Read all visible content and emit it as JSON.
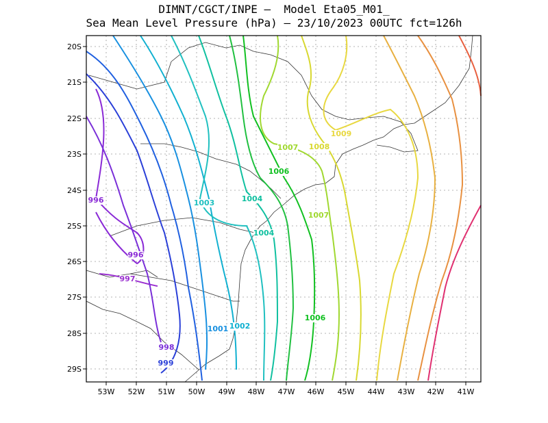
{
  "title_line1": "DIMNT/CGCT/INPE –  Model Eta05_M01_",
  "title_line2": "Sea Mean Level Pressure (hPa) – 23/10/2023 00UTC fct=126h",
  "lat_ticks": [
    "20S",
    "21S",
    "22S",
    "23S",
    "24S",
    "25S",
    "26S",
    "27S",
    "28S",
    "29S"
  ],
  "lon_ticks": [
    "53W",
    "52W",
    "51W",
    "50W",
    "49W",
    "48W",
    "47W",
    "46W",
    "45W",
    "44W",
    "43W",
    "42W",
    "41W"
  ],
  "colors": {
    "frame": "#000000",
    "grid": "#9a9a9a",
    "coast": "#333333"
  },
  "contours": [
    {
      "value": 996,
      "color": "#8a2ad6"
    },
    {
      "value": 997,
      "color": "#9a30d0"
    },
    {
      "value": 998,
      "color": "#7a2fd8"
    },
    {
      "value": 999,
      "color": "#2a3fd8"
    },
    {
      "value": 1000,
      "color": "#2060e0"
    },
    {
      "value": 1001,
      "color": "#1890e0"
    },
    {
      "value": 1002,
      "color": "#10b0d0"
    },
    {
      "value": 1003,
      "color": "#20c0c0"
    },
    {
      "value": 1004,
      "color": "#10c0a0"
    },
    {
      "value": 1005,
      "color": "#20c040"
    },
    {
      "value": 1006,
      "color": "#10c020"
    },
    {
      "value": 1007,
      "color": "#a0d830"
    },
    {
      "value": 1008,
      "color": "#d8d830"
    },
    {
      "value": 1009,
      "color": "#e8d840"
    },
    {
      "value": 1010,
      "color": "#e8b040"
    },
    {
      "value": 1011,
      "color": "#e89040"
    },
    {
      "value": 1012,
      "color": "#e86040"
    },
    {
      "value": 1013,
      "color": "#e03070"
    }
  ],
  "labels": [
    {
      "text": "996",
      "color": "#8a2ad6"
    },
    {
      "text": "996",
      "color": "#8a2ad6"
    },
    {
      "text": "997",
      "color": "#9a30d0"
    },
    {
      "text": "998",
      "color": "#7a2fd8"
    },
    {
      "text": "999",
      "color": "#2a3fd8"
    },
    {
      "text": "1001",
      "color": "#1890e0"
    },
    {
      "text": "1002",
      "color": "#10b0d0"
    },
    {
      "text": "1003",
      "color": "#20c0c0"
    },
    {
      "text": "1004",
      "color": "#10c0a0"
    },
    {
      "text": "1004",
      "color": "#10c0a0"
    },
    {
      "text": "1006",
      "color": "#10c020"
    },
    {
      "text": "1006",
      "color": "#10c020"
    },
    {
      "text": "1007",
      "color": "#a0d830"
    },
    {
      "text": "1007",
      "color": "#a0d830"
    },
    {
      "text": "1008",
      "color": "#d8d830"
    },
    {
      "text": "1009",
      "color": "#e8d840"
    }
  ]
}
